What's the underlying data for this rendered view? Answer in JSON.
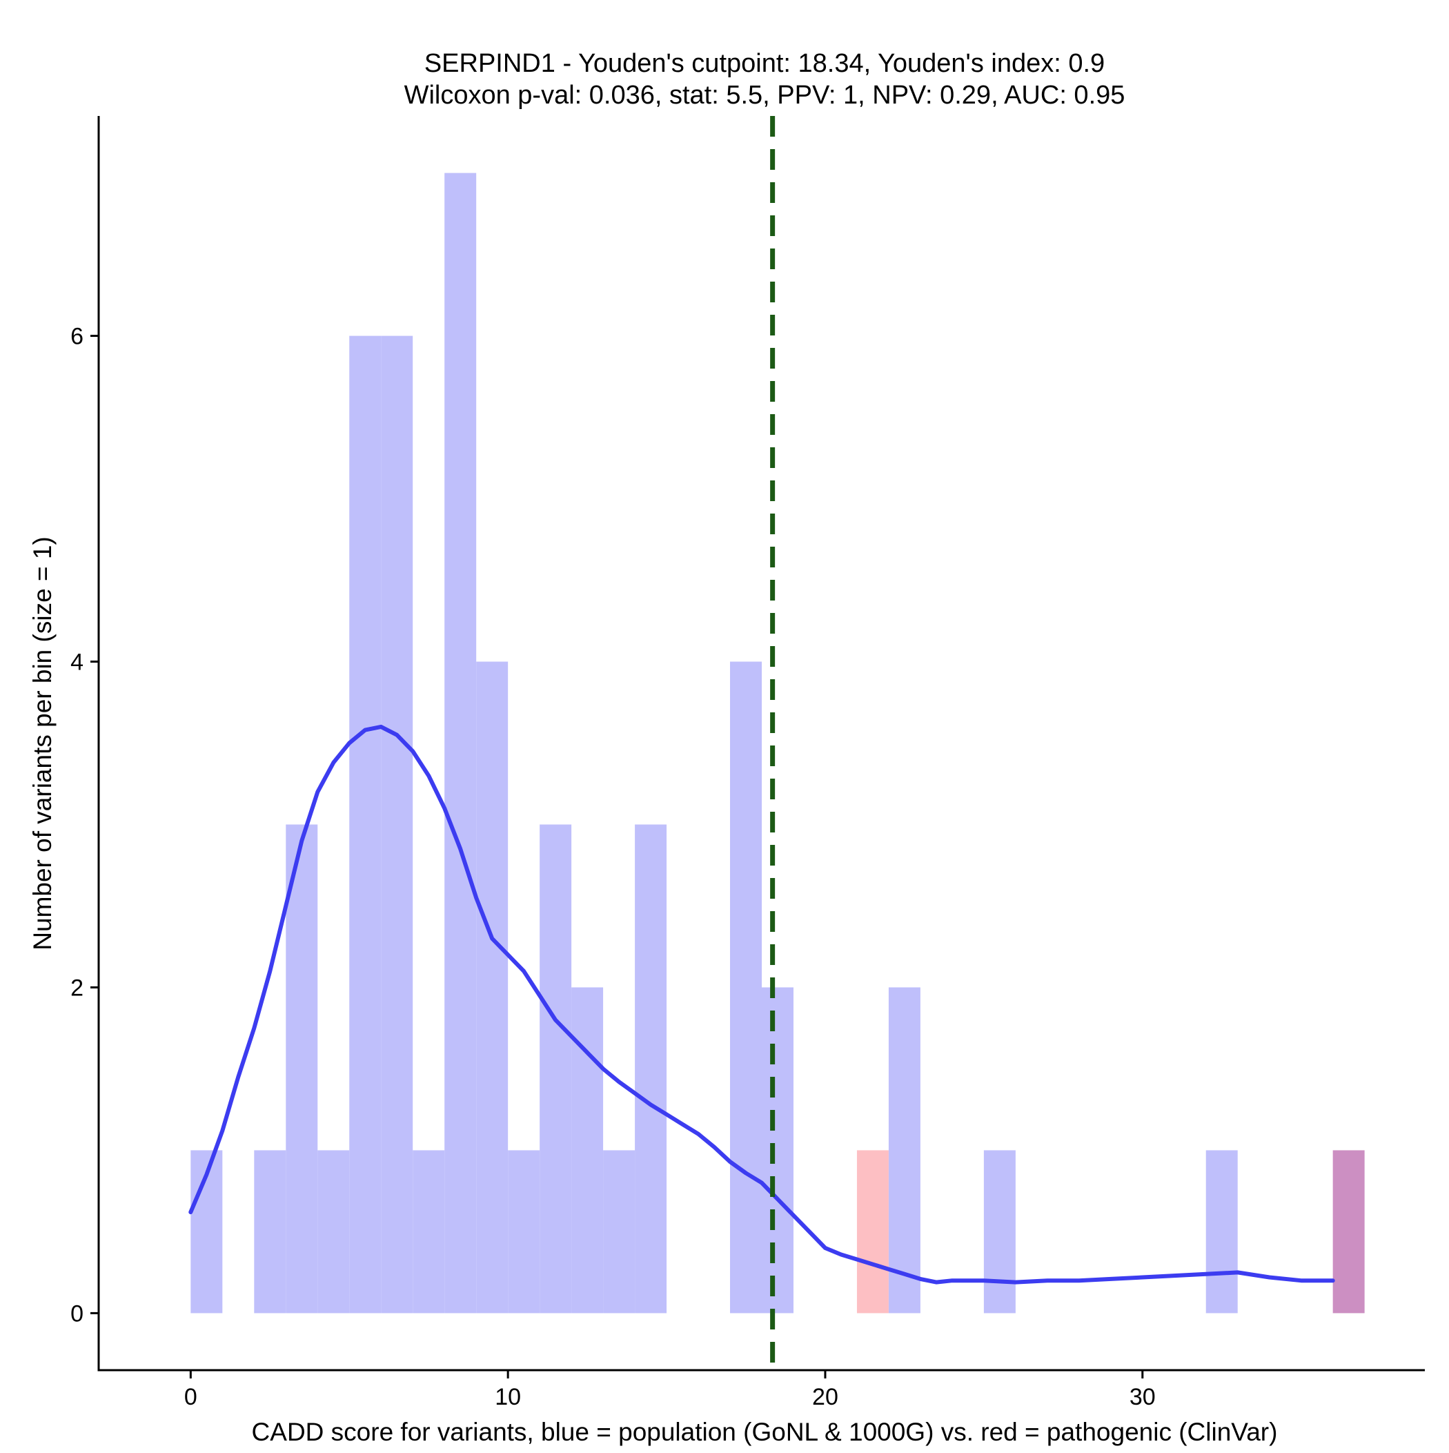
{
  "chart_data": {
    "type": "bar",
    "title_line1": "SERPIND1 - Youden's cutpoint: 18.34, Youden's index: 0.9",
    "title_line2": "Wilcoxon p-val: 0.036, stat: 5.5, PPV: 1, NPV: 0.29, AUC: 0.95",
    "xlabel": "CADD score for variants, blue = population (GoNL & 1000G) vs. red = pathogenic (ClinVar)",
    "ylabel": "Number of variants per bin (size = 1)",
    "xlim": [
      -2.9,
      38.9
    ],
    "ylim": [
      -0.35,
      7.35
    ],
    "x_ticks": [
      0,
      10,
      20,
      30
    ],
    "y_ticks": [
      0,
      2,
      4,
      6
    ],
    "bin_width": 1,
    "cutpoint": 18.34,
    "colors": {
      "population": "#bfbffb",
      "pathogenic": "#fdbfc3",
      "overlap": "#cc8fc2",
      "density": "#3c3cf0",
      "cutpoint": "#1c5a15",
      "axis": "#000000"
    },
    "series": [
      {
        "name": "population",
        "bins": [
          {
            "x0": 0,
            "count": 1
          },
          {
            "x0": 2,
            "count": 1
          },
          {
            "x0": 3,
            "count": 3
          },
          {
            "x0": 4,
            "count": 1
          },
          {
            "x0": 5,
            "count": 6
          },
          {
            "x0": 6,
            "count": 6
          },
          {
            "x0": 7,
            "count": 1
          },
          {
            "x0": 8,
            "count": 7
          },
          {
            "x0": 9,
            "count": 4
          },
          {
            "x0": 10,
            "count": 1
          },
          {
            "x0": 11,
            "count": 3
          },
          {
            "x0": 12,
            "count": 2
          },
          {
            "x0": 13,
            "count": 1
          },
          {
            "x0": 14,
            "count": 3
          },
          {
            "x0": 17,
            "count": 4
          },
          {
            "x0": 18,
            "count": 2
          },
          {
            "x0": 22,
            "count": 2
          },
          {
            "x0": 25,
            "count": 1
          },
          {
            "x0": 32,
            "count": 1
          },
          {
            "x0": 36,
            "count": 1
          }
        ]
      },
      {
        "name": "pathogenic",
        "bins": [
          {
            "x0": 21,
            "count": 1
          },
          {
            "x0": 36,
            "count": 1
          }
        ]
      }
    ],
    "density_curve": {
      "x": [
        0,
        0.5,
        1,
        1.5,
        2,
        2.5,
        3,
        3.5,
        4,
        4.5,
        5,
        5.5,
        6,
        6.5,
        7,
        7.5,
        8,
        8.5,
        9,
        9.5,
        10,
        10.5,
        11,
        11.5,
        12,
        12.5,
        13,
        13.5,
        14,
        14.5,
        15,
        15.5,
        16,
        16.5,
        17,
        17.5,
        18,
        18.5,
        19,
        19.5,
        20,
        20.5,
        21,
        21.5,
        22,
        22.5,
        23,
        23.5,
        24,
        25,
        26,
        27,
        28,
        29,
        30,
        31,
        32,
        33,
        34,
        35,
        36
      ],
      "y": [
        0.62,
        0.85,
        1.12,
        1.45,
        1.75,
        2.1,
        2.5,
        2.9,
        3.2,
        3.38,
        3.5,
        3.58,
        3.6,
        3.55,
        3.45,
        3.3,
        3.1,
        2.85,
        2.55,
        2.3,
        2.2,
        2.1,
        1.95,
        1.8,
        1.7,
        1.6,
        1.5,
        1.42,
        1.35,
        1.28,
        1.22,
        1.16,
        1.1,
        1.02,
        0.93,
        0.86,
        0.8,
        0.7,
        0.6,
        0.5,
        0.4,
        0.36,
        0.33,
        0.3,
        0.27,
        0.24,
        0.21,
        0.19,
        0.2,
        0.2,
        0.19,
        0.2,
        0.2,
        0.21,
        0.22,
        0.23,
        0.24,
        0.25,
        0.22,
        0.2,
        0.2
      ]
    }
  }
}
